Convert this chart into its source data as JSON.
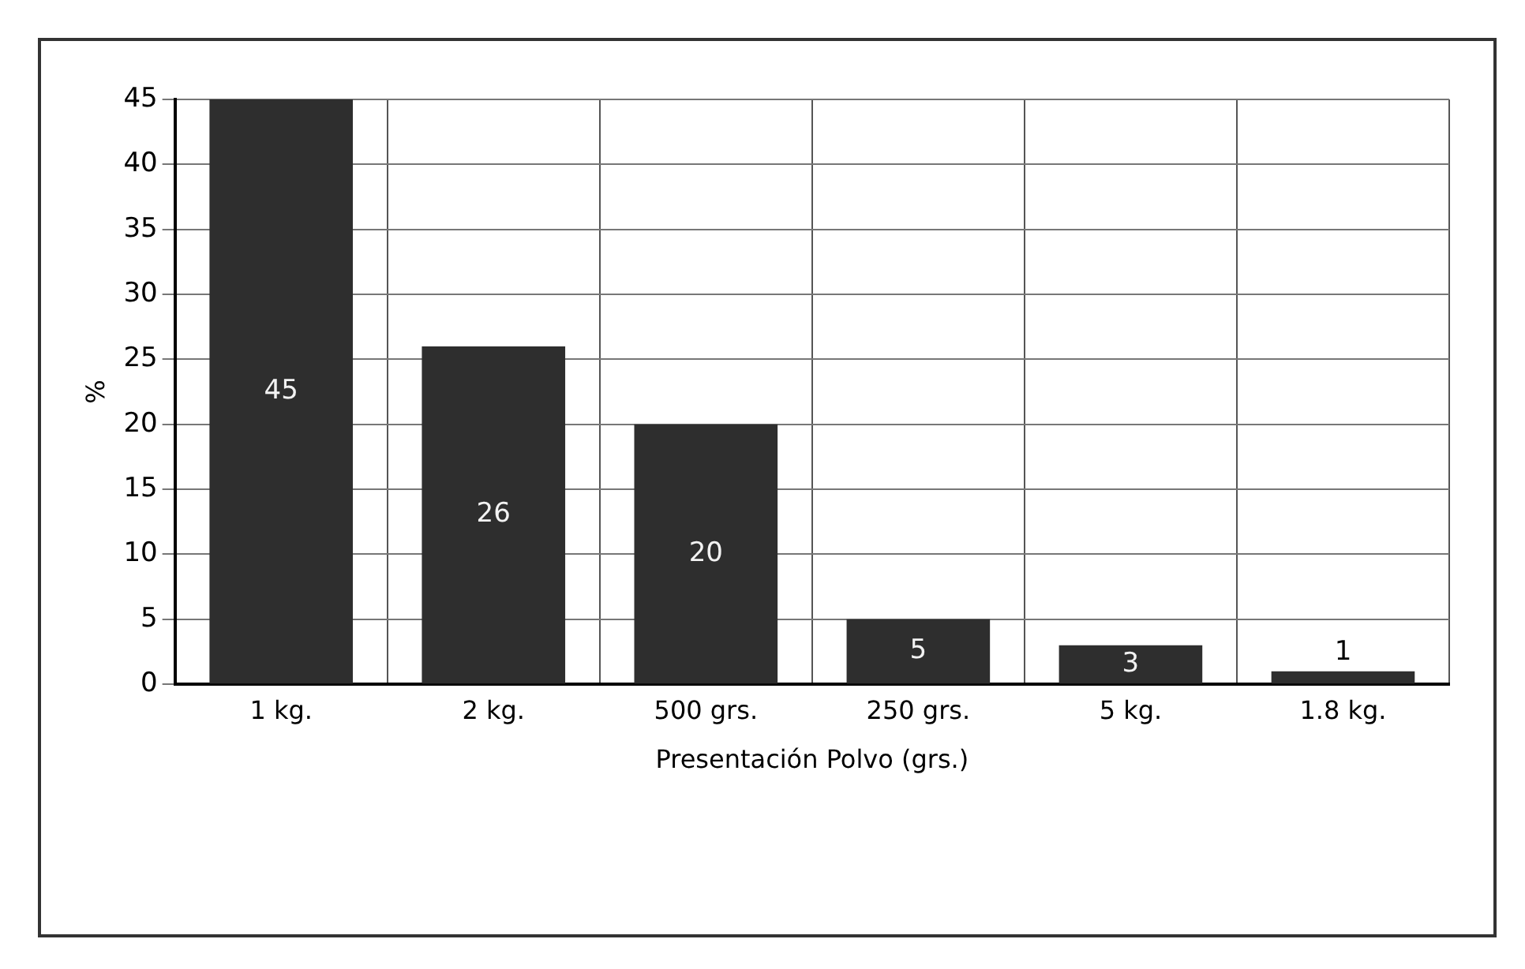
{
  "chart_data": {
    "type": "bar",
    "xlabel": "Presentación Polvo (grs.)",
    "ylabel": "%",
    "categories": [
      "1 kg.",
      "2 kg.",
      "500 grs.",
      "250 grs.",
      "5 kg.",
      "1.8 kg."
    ],
    "values": [
      45,
      26,
      20,
      5,
      3,
      1
    ],
    "color": "#2e2e2e",
    "ylim": [
      0,
      45
    ],
    "yticks": [
      0,
      5,
      10,
      15,
      20,
      25,
      30,
      35,
      40,
      45
    ],
    "grid": true,
    "data_labels": true,
    "legend": false
  }
}
